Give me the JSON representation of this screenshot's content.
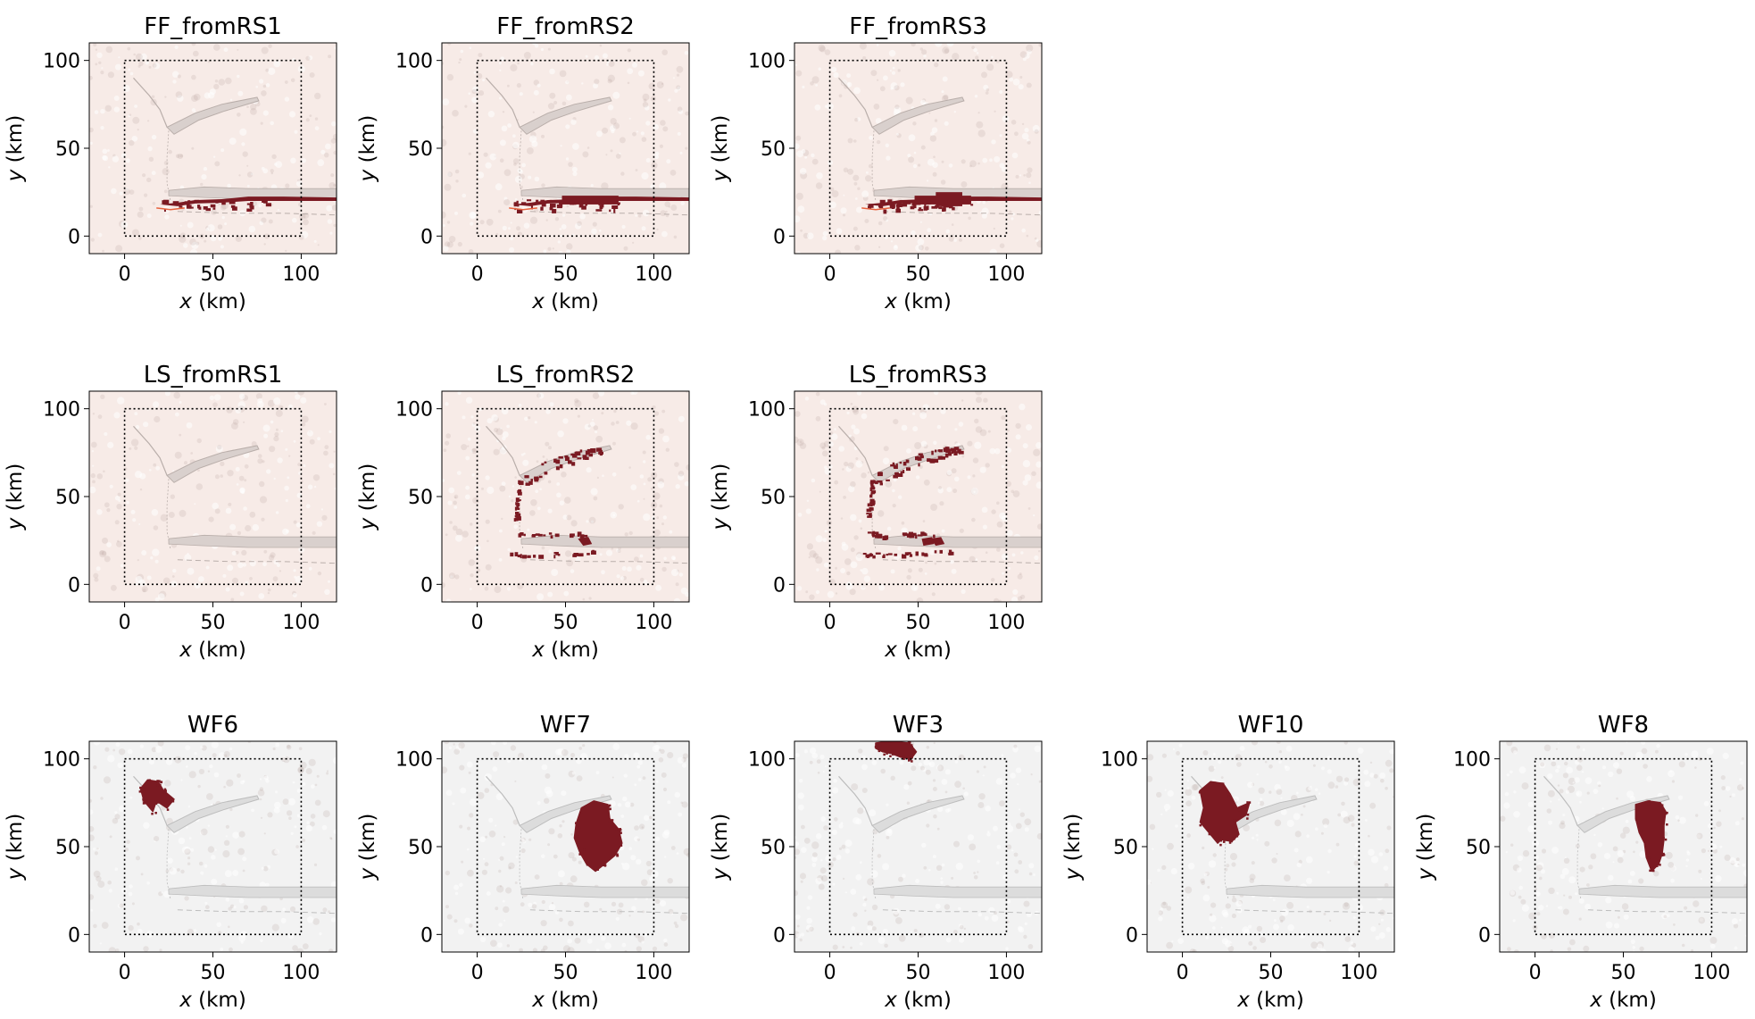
{
  "chart_data": {
    "type": "map-grid",
    "xlabel_var": "x",
    "ylabel_var": "y",
    "unit": " (km)",
    "xlim": [
      -20,
      120
    ],
    "ylim": [
      -10,
      110
    ],
    "xticks": [
      0,
      50,
      100
    ],
    "yticks": [
      0,
      50,
      100
    ],
    "study_area": {
      "x": [
        0,
        100
      ],
      "y": [
        0,
        100
      ],
      "style": "dotted"
    },
    "colors": {
      "hazard": "#7b1a22",
      "hazard_light": "#e7633f",
      "tint_ff_ls": "#f7ebe7",
      "tint_wf": "#f2f2f2",
      "feature": "#d9d0cd",
      "feature_edge": "#b9aeaa"
    },
    "panels": [
      {
        "row": 0,
        "col": 0,
        "title": "FF_fromRS1",
        "tint": "ff",
        "hazard": "flood",
        "level": 1
      },
      {
        "row": 0,
        "col": 1,
        "title": "FF_fromRS2",
        "tint": "ff",
        "hazard": "flood",
        "level": 2
      },
      {
        "row": 0,
        "col": 2,
        "title": "FF_fromRS3",
        "tint": "ff",
        "hazard": "flood",
        "level": 3
      },
      {
        "row": 1,
        "col": 0,
        "title": "LS_fromRS1",
        "tint": "ls",
        "hazard": "landslide",
        "level": 0
      },
      {
        "row": 1,
        "col": 1,
        "title": "LS_fromRS2",
        "tint": "ls",
        "hazard": "landslide",
        "level": 2
      },
      {
        "row": 1,
        "col": 2,
        "title": "LS_fromRS3",
        "tint": "ls",
        "hazard": "landslide",
        "level": 3
      },
      {
        "row": 2,
        "col": 0,
        "title": "WF6",
        "tint": "wf",
        "hazard": "wildfire",
        "blob": [
          [
            13,
            88
          ],
          [
            9,
            83
          ],
          [
            11,
            76
          ],
          [
            16,
            70
          ],
          [
            18,
            76
          ],
          [
            24,
            72
          ],
          [
            28,
            77
          ],
          [
            22,
            82
          ],
          [
            19,
            87
          ]
        ]
      },
      {
        "row": 2,
        "col": 1,
        "title": "WF7",
        "tint": "wf",
        "hazard": "wildfire",
        "blob": [
          [
            59,
            72
          ],
          [
            66,
            76
          ],
          [
            74,
            74
          ],
          [
            75,
            66
          ],
          [
            80,
            60
          ],
          [
            82,
            52
          ],
          [
            78,
            45
          ],
          [
            72,
            40
          ],
          [
            67,
            36
          ],
          [
            62,
            40
          ],
          [
            58,
            47
          ],
          [
            55,
            55
          ],
          [
            56,
            63
          ]
        ]
      },
      {
        "row": 2,
        "col": 2,
        "title": "WF3",
        "tint": "wf",
        "hazard": "wildfire",
        "blob": [
          [
            26,
            109
          ],
          [
            34,
            110
          ],
          [
            45,
            109
          ],
          [
            49,
            104
          ],
          [
            46,
            100
          ],
          [
            40,
            101
          ],
          [
            35,
            103
          ],
          [
            30,
            104
          ],
          [
            26,
            106
          ]
        ]
      },
      {
        "row": 2,
        "col": 3,
        "title": "WF10",
        "tint": "wf",
        "hazard": "wildfire",
        "blob": [
          [
            10,
            82
          ],
          [
            16,
            87
          ],
          [
            23,
            86
          ],
          [
            27,
            80
          ],
          [
            31,
            72
          ],
          [
            38,
            75
          ],
          [
            36,
            68
          ],
          [
            30,
            64
          ],
          [
            32,
            57
          ],
          [
            28,
            53
          ],
          [
            22,
            54
          ],
          [
            20,
            52
          ],
          [
            15,
            58
          ],
          [
            10,
            64
          ],
          [
            12,
            72
          ]
        ]
      },
      {
        "row": 2,
        "col": 4,
        "title": "WF8",
        "tint": "wf",
        "hazard": "wildfire",
        "blob": [
          [
            57,
            74
          ],
          [
            64,
            76
          ],
          [
            71,
            75
          ],
          [
            74,
            70
          ],
          [
            73,
            62
          ],
          [
            73,
            54
          ],
          [
            72,
            46
          ],
          [
            70,
            40
          ],
          [
            66,
            36
          ],
          [
            63,
            44
          ],
          [
            62,
            52
          ],
          [
            59,
            58
          ],
          [
            57,
            66
          ]
        ]
      }
    ]
  }
}
